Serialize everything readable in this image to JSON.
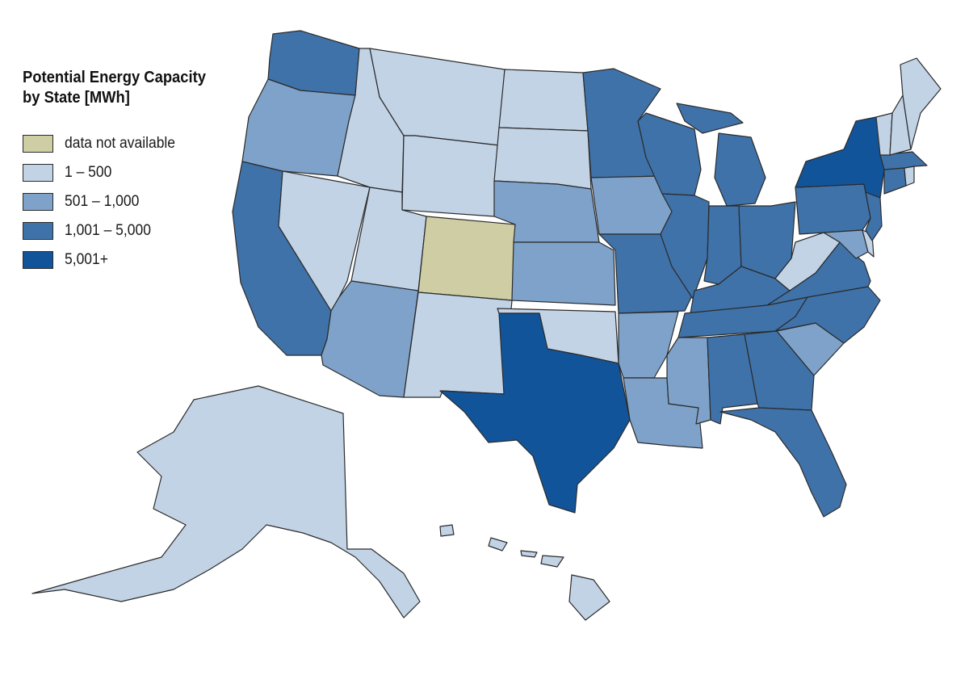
{
  "legend": {
    "title_line1": "Potential Energy Capacity",
    "title_line2": "by State [MWh]",
    "items": [
      {
        "key": "na",
        "label": "data not available",
        "color": "#cfcda3"
      },
      {
        "key": "c1",
        "label": "1 – 500",
        "color": "#c2d3e6"
      },
      {
        "key": "c2",
        "label": "501 – 1,000",
        "color": "#7ea2c9"
      },
      {
        "key": "c3",
        "label": "1,001 – 5,000",
        "color": "#3f72a9"
      },
      {
        "key": "c4",
        "label": "5,001+",
        "color": "#12549a"
      }
    ]
  },
  "states": {
    "WA": "c3",
    "OR": "c2",
    "CA": "c3",
    "NV": "c1",
    "ID": "c1",
    "MT": "c1",
    "WY": "c1",
    "UT": "c1",
    "AZ": "c2",
    "CO": "na",
    "NM": "c1",
    "ND": "c1",
    "SD": "c1",
    "NE": "c2",
    "KS": "c2",
    "OK": "c1",
    "TX": "c4",
    "MN": "c3",
    "IA": "c2",
    "MO": "c3",
    "AR": "c2",
    "LA": "c2",
    "WI": "c3",
    "IL": "c3",
    "MS": "c2",
    "MI": "c3",
    "IN": "c3",
    "OH": "c3",
    "KY": "c3",
    "TN": "c3",
    "AL": "c3",
    "GA": "c3",
    "FL": "c3",
    "SC": "c2",
    "NC": "c3",
    "VA": "c3",
    "WV": "c1",
    "MD": "c2",
    "DE": "c1",
    "PA": "c3",
    "NJ": "c3",
    "NY": "c4",
    "CT": "c3",
    "RI": "c1",
    "MA": "c3",
    "VT": "c1",
    "NH": "c1",
    "ME": "c1",
    "AK": "c1",
    "HI": "c1"
  }
}
